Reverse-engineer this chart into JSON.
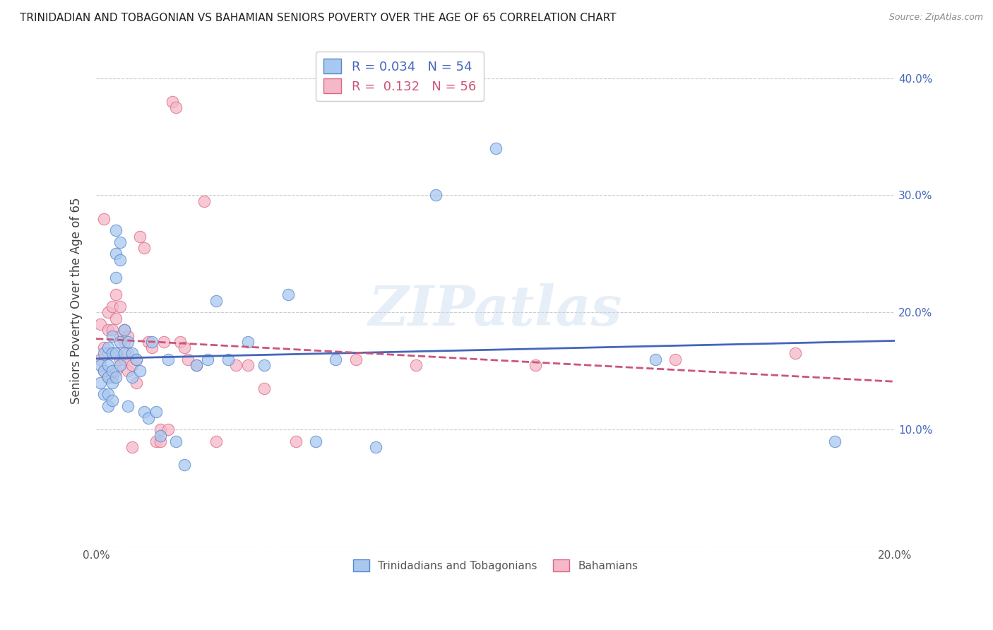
{
  "title": "TRINIDADIAN AND TOBAGONIAN VS BAHAMIAN SENIORS POVERTY OVER THE AGE OF 65 CORRELATION CHART",
  "source": "Source: ZipAtlas.com",
  "ylabel": "Seniors Poverty Over the Age of 65",
  "xlim": [
    0.0,
    0.2
  ],
  "ylim": [
    0.0,
    0.42
  ],
  "xtick_positions": [
    0.0,
    0.05,
    0.1,
    0.15,
    0.2
  ],
  "xtick_labels": [
    "0.0%",
    "",
    "",
    "",
    "20.0%"
  ],
  "ytick_positions": [
    0.0,
    0.1,
    0.2,
    0.3,
    0.4
  ],
  "ytick_labels": [
    "",
    "10.0%",
    "20.0%",
    "30.0%",
    "40.0%"
  ],
  "blue_R": 0.034,
  "blue_N": 54,
  "pink_R": 0.132,
  "pink_N": 56,
  "blue_color": "#a8c8f0",
  "pink_color": "#f5b8c8",
  "blue_edge_color": "#5588cc",
  "pink_edge_color": "#dd6688",
  "blue_line_color": "#4466bb",
  "pink_line_color": "#cc5577",
  "watermark": "ZIPatlas",
  "legend_label_blue": "Trinidadians and Tobagonians",
  "legend_label_pink": "Bahamians",
  "blue_x": [
    0.001,
    0.001,
    0.002,
    0.002,
    0.002,
    0.003,
    0.003,
    0.003,
    0.003,
    0.003,
    0.004,
    0.004,
    0.004,
    0.004,
    0.004,
    0.005,
    0.005,
    0.005,
    0.005,
    0.005,
    0.006,
    0.006,
    0.006,
    0.006,
    0.007,
    0.007,
    0.008,
    0.008,
    0.009,
    0.009,
    0.01,
    0.011,
    0.012,
    0.013,
    0.014,
    0.015,
    0.016,
    0.018,
    0.02,
    0.022,
    0.025,
    0.028,
    0.03,
    0.033,
    0.038,
    0.042,
    0.048,
    0.055,
    0.06,
    0.07,
    0.085,
    0.1,
    0.14,
    0.185
  ],
  "blue_y": [
    0.155,
    0.14,
    0.165,
    0.15,
    0.13,
    0.17,
    0.155,
    0.145,
    0.13,
    0.12,
    0.18,
    0.165,
    0.15,
    0.14,
    0.125,
    0.27,
    0.25,
    0.23,
    0.165,
    0.145,
    0.26,
    0.245,
    0.175,
    0.155,
    0.185,
    0.165,
    0.175,
    0.12,
    0.165,
    0.145,
    0.16,
    0.15,
    0.115,
    0.11,
    0.175,
    0.115,
    0.095,
    0.16,
    0.09,
    0.07,
    0.155,
    0.16,
    0.21,
    0.16,
    0.175,
    0.155,
    0.215,
    0.09,
    0.16,
    0.085,
    0.3,
    0.34,
    0.16,
    0.09
  ],
  "pink_x": [
    0.001,
    0.001,
    0.002,
    0.002,
    0.002,
    0.003,
    0.003,
    0.003,
    0.003,
    0.004,
    0.004,
    0.004,
    0.004,
    0.005,
    0.005,
    0.005,
    0.005,
    0.006,
    0.006,
    0.006,
    0.007,
    0.007,
    0.007,
    0.008,
    0.008,
    0.008,
    0.009,
    0.009,
    0.01,
    0.01,
    0.011,
    0.012,
    0.013,
    0.014,
    0.015,
    0.016,
    0.016,
    0.017,
    0.018,
    0.019,
    0.02,
    0.021,
    0.022,
    0.023,
    0.025,
    0.027,
    0.03,
    0.035,
    0.038,
    0.042,
    0.05,
    0.065,
    0.08,
    0.11,
    0.145,
    0.175
  ],
  "pink_y": [
    0.19,
    0.16,
    0.28,
    0.17,
    0.15,
    0.2,
    0.185,
    0.165,
    0.145,
    0.205,
    0.185,
    0.165,
    0.145,
    0.215,
    0.195,
    0.165,
    0.15,
    0.205,
    0.18,
    0.16,
    0.185,
    0.175,
    0.16,
    0.18,
    0.165,
    0.15,
    0.155,
    0.085,
    0.16,
    0.14,
    0.265,
    0.255,
    0.175,
    0.17,
    0.09,
    0.09,
    0.1,
    0.175,
    0.1,
    0.38,
    0.375,
    0.175,
    0.17,
    0.16,
    0.155,
    0.295,
    0.09,
    0.155,
    0.155,
    0.135,
    0.09,
    0.16,
    0.155,
    0.155,
    0.16,
    0.165
  ]
}
